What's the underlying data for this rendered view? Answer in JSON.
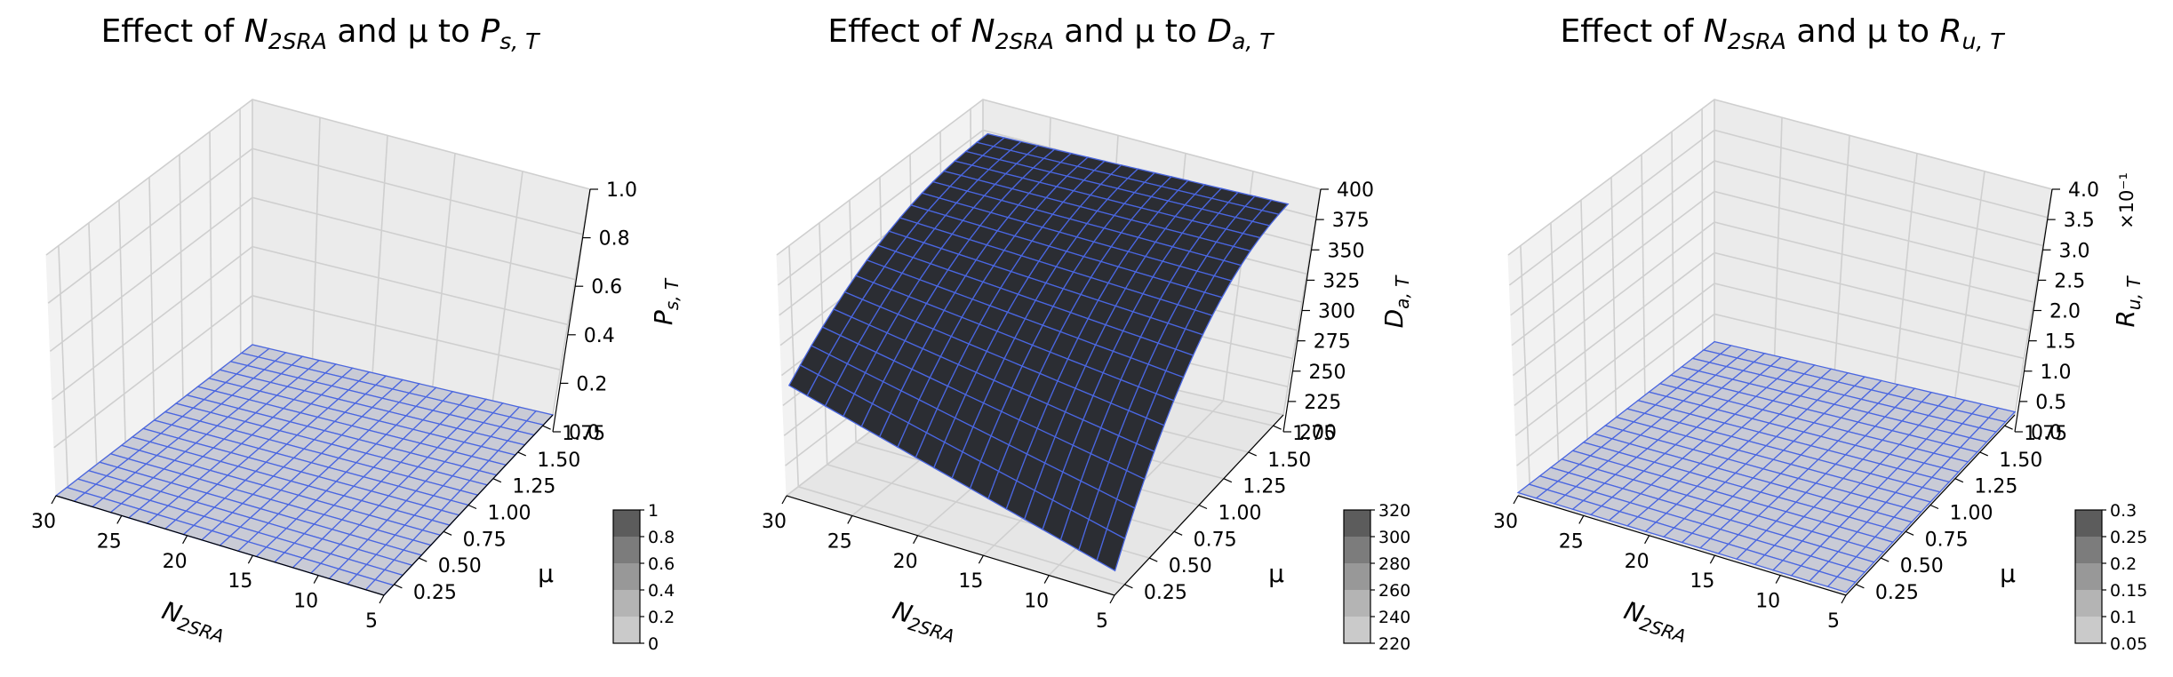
{
  "chart_data": [
    {
      "type": "surface3d",
      "title": {
        "prefix": "Effect of ",
        "v1": "N",
        "v1_sub": "2SRA",
        "mid": " and μ to ",
        "v2": "P",
        "v2_sub": "s, T"
      },
      "xlabel": {
        "base": "N",
        "sub": "2SRA"
      },
      "ylabel": "μ",
      "zlabel": {
        "base": "P",
        "sub": "s, T"
      },
      "x_range": [
        5,
        30
      ],
      "y_range": [
        0.25,
        1.75
      ],
      "zlim": [
        0,
        1
      ],
      "x_ticks": [
        "30",
        "25",
        "20",
        "15",
        "10",
        "5"
      ],
      "y_ticks": [
        "0.25",
        "0.50",
        "0.75",
        "1.00",
        "1.25",
        "1.50",
        "1.75"
      ],
      "z_ticks": [
        "0.0",
        "0.2",
        "0.4",
        "0.6",
        "0.8",
        "1.0"
      ],
      "z_offset_label": "",
      "grid": true,
      "surface": {
        "description": "flat surface at ~0",
        "z_value_at": {
          "N_min_mu_min": 0.0,
          "N_max_mu_min": 0.0,
          "N_min_mu_max": 0.0,
          "N_max_mu_max": 0.0
        },
        "face_color": "#c9cbd6",
        "edge_color": "#4a66e0"
      },
      "colorbar": {
        "ticks": [
          "0",
          "0.2",
          "0.4",
          "0.6",
          "0.8",
          "1"
        ]
      }
    },
    {
      "type": "surface3d",
      "title": {
        "prefix": "Effect of ",
        "v1": "N",
        "v1_sub": "2SRA",
        "mid": " and μ to ",
        "v2": "D",
        "v2_sub": "a, T"
      },
      "xlabel": {
        "base": "N",
        "sub": "2SRA"
      },
      "ylabel": "μ",
      "zlabel": {
        "base": "D",
        "sub": "a, T"
      },
      "x_range": [
        5,
        30
      ],
      "y_range": [
        0.25,
        1.75
      ],
      "zlim": [
        200,
        400
      ],
      "x_ticks": [
        "30",
        "25",
        "20",
        "15",
        "10",
        "5"
      ],
      "y_ticks": [
        "0.25",
        "0.50",
        "0.75",
        "1.00",
        "1.25",
        "1.50",
        "1.75"
      ],
      "z_ticks": [
        "200",
        "225",
        "250",
        "275",
        "300",
        "325",
        "350",
        "375",
        "400"
      ],
      "z_offset_label": "",
      "grid": true,
      "surface": {
        "description": "rises from low mu toward high mu, saturating near 380",
        "z_value_at": {
          "N_min_mu_min": 220,
          "N_max_mu_min": 290,
          "N_min_mu_max": 372,
          "N_max_mu_max": 372
        },
        "face_color": "#2b2d33",
        "edge_color": "#4a66e0"
      },
      "colorbar": {
        "ticks": [
          "220",
          "240",
          "260",
          "280",
          "300",
          "320"
        ]
      }
    },
    {
      "type": "surface3d",
      "title": {
        "prefix": "Effect of ",
        "v1": "N",
        "v1_sub": "2SRA",
        "mid": " and μ to ",
        "v2": "R",
        "v2_sub": "u, T"
      },
      "xlabel": {
        "base": "N",
        "sub": "2SRA"
      },
      "ylabel": "μ",
      "zlabel": {
        "base": "R",
        "sub": "u, T"
      },
      "x_range": [
        5,
        30
      ],
      "y_range": [
        0.25,
        1.75
      ],
      "zlim": [
        0,
        4
      ],
      "x_ticks": [
        "30",
        "25",
        "20",
        "15",
        "10",
        "5"
      ],
      "y_ticks": [
        "0.25",
        "0.50",
        "0.75",
        "1.00",
        "1.25",
        "1.50",
        "1.75"
      ],
      "z_ticks": [
        "0.0",
        "0.5",
        "1.0",
        "1.5",
        "2.0",
        "2.5",
        "3.0",
        "3.5",
        "4.0"
      ],
      "z_offset_label": "×10⁻¹",
      "grid": true,
      "surface": {
        "description": "flat surface slightly above 0",
        "z_value_at": {
          "N_min_mu_min": 0.05,
          "N_max_mu_min": 0.05,
          "N_min_mu_max": 0.05,
          "N_max_mu_max": 0.05
        },
        "face_color": "#c9cbd6",
        "edge_color": "#4a66e0"
      },
      "colorbar": {
        "ticks": [
          "0.05",
          "0.1",
          "0.15",
          "0.2",
          "0.25",
          "0.3"
        ]
      }
    }
  ]
}
